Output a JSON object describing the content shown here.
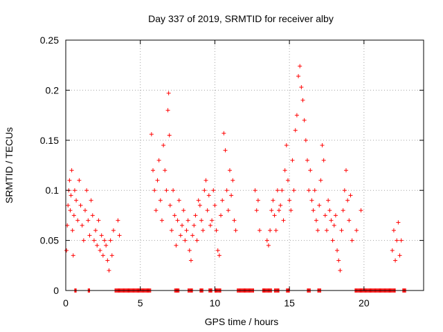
{
  "chart_data": {
    "type": "scatter",
    "title": "Day 337 of 2019, SRMTID for receiver alby",
    "xlabel": "GPS time / hours",
    "ylabel": "SRMTID / TECUs",
    "xlim": [
      0,
      24
    ],
    "ylim": [
      0,
      0.25
    ],
    "xticks": [
      0,
      5,
      10,
      15,
      20
    ],
    "yticks": [
      0,
      0.05,
      0.1,
      0.15,
      0.2,
      0.25
    ],
    "xtick_labels": [
      "0",
      "5",
      "10",
      "15",
      "20"
    ],
    "ytick_labels": [
      "0",
      "0.05",
      "0.1",
      "0.15",
      "0.2",
      "0.25"
    ],
    "grid": true,
    "marker": "+",
    "color": "#ff0000",
    "series": [
      {
        "name": "SRMTID",
        "x": [
          0.05,
          0.1,
          0.15,
          0.2,
          0.25,
          0.3,
          0.35,
          0.4,
          0.45,
          0.5,
          0.55,
          0.6,
          0.7,
          0.8,
          0.9,
          1.0,
          1.1,
          1.2,
          1.3,
          1.4,
          1.5,
          1.6,
          1.7,
          1.8,
          1.9,
          2.0,
          2.1,
          2.2,
          2.3,
          2.4,
          2.5,
          2.6,
          2.7,
          2.8,
          2.9,
          3.0,
          3.1,
          3.2,
          3.5,
          3.6,
          5.75,
          5.85,
          5.95,
          6.05,
          6.15,
          6.25,
          6.35,
          6.45,
          6.55,
          6.65,
          6.75,
          6.85,
          6.9,
          6.95,
          7.0,
          7.1,
          7.2,
          7.3,
          7.4,
          7.5,
          7.6,
          7.7,
          7.8,
          7.9,
          8.0,
          8.1,
          8.2,
          8.3,
          8.4,
          8.5,
          8.6,
          8.7,
          8.8,
          8.9,
          9.0,
          9.1,
          9.2,
          9.3,
          9.4,
          9.5,
          9.6,
          9.7,
          9.8,
          9.9,
          10.0,
          10.1,
          10.2,
          10.3,
          10.4,
          10.5,
          10.6,
          10.7,
          10.8,
          10.9,
          11.0,
          11.1,
          11.2,
          11.3,
          11.4,
          12.7,
          12.8,
          12.9,
          13.0,
          13.5,
          13.6,
          13.7,
          13.8,
          13.9,
          14.0,
          14.1,
          14.2,
          14.3,
          14.4,
          14.5,
          14.6,
          14.7,
          14.8,
          14.9,
          15.0,
          15.1,
          15.2,
          15.3,
          15.4,
          15.5,
          15.6,
          15.7,
          15.8,
          15.9,
          16.0,
          16.1,
          16.2,
          16.3,
          16.4,
          16.5,
          16.6,
          16.7,
          16.8,
          16.9,
          17.0,
          17.1,
          17.2,
          17.3,
          17.4,
          17.5,
          17.6,
          17.7,
          17.8,
          17.9,
          18.0,
          18.1,
          18.2,
          18.3,
          18.4,
          18.5,
          18.6,
          18.7,
          18.8,
          18.9,
          19.0,
          19.1,
          19.2,
          19.5,
          19.8,
          21.9,
          22.0,
          22.1,
          22.2,
          22.3,
          22.4,
          22.5
        ],
        "y": [
          0.04,
          0.065,
          0.085,
          0.1,
          0.11,
          0.08,
          0.095,
          0.12,
          0.06,
          0.035,
          0.075,
          0.1,
          0.09,
          0.07,
          0.11,
          0.085,
          0.065,
          0.05,
          0.08,
          0.1,
          0.07,
          0.055,
          0.09,
          0.075,
          0.05,
          0.06,
          0.045,
          0.07,
          0.04,
          0.055,
          0.035,
          0.05,
          0.045,
          0.03,
          0.02,
          0.05,
          0.035,
          0.06,
          0.07,
          0.055,
          0.156,
          0.12,
          0.1,
          0.08,
          0.11,
          0.13,
          0.09,
          0.07,
          0.145,
          0.12,
          0.1,
          0.18,
          0.197,
          0.155,
          0.085,
          0.06,
          0.1,
          0.075,
          0.045,
          0.07,
          0.09,
          0.055,
          0.065,
          0.08,
          0.05,
          0.06,
          0.07,
          0.04,
          0.03,
          0.055,
          0.065,
          0.075,
          0.05,
          0.09,
          0.085,
          0.07,
          0.06,
          0.1,
          0.11,
          0.08,
          0.095,
          0.065,
          0.07,
          0.1,
          0.085,
          0.06,
          0.04,
          0.035,
          0.075,
          0.09,
          0.157,
          0.14,
          0.1,
          0.08,
          0.12,
          0.095,
          0.11,
          0.07,
          0.06,
          0.1,
          0.08,
          0.09,
          0.06,
          0.05,
          0.045,
          0.06,
          0.08,
          0.09,
          0.075,
          0.06,
          0.1,
          0.08,
          0.085,
          0.1,
          0.07,
          0.12,
          0.145,
          0.11,
          0.09,
          0.08,
          0.13,
          0.1,
          0.16,
          0.175,
          0.214,
          0.224,
          0.203,
          0.19,
          0.17,
          0.15,
          0.13,
          0.1,
          0.12,
          0.09,
          0.08,
          0.1,
          0.07,
          0.06,
          0.085,
          0.11,
          0.145,
          0.13,
          0.075,
          0.06,
          0.09,
          0.08,
          0.07,
          0.05,
          0.065,
          0.075,
          0.04,
          0.03,
          0.02,
          0.06,
          0.08,
          0.1,
          0.12,
          0.09,
          0.07,
          0.095,
          0.05,
          0.06,
          0.08,
          0.04,
          0.06,
          0.03,
          0.05,
          0.068,
          0.035,
          0.05
        ],
        "zero_ranges": [
          [
            0.6,
            0.7
          ],
          [
            1.5,
            1.6
          ],
          [
            3.3,
            5.7
          ],
          [
            7.3,
            7.6
          ],
          [
            8.2,
            8.5
          ],
          [
            9.0,
            9.2
          ],
          [
            9.6,
            9.8
          ],
          [
            10.0,
            10.4
          ],
          [
            11.5,
            12.6
          ],
          [
            13.2,
            13.8
          ],
          [
            14.0,
            14.3
          ],
          [
            14.8,
            15.0
          ],
          [
            16.2,
            16.4
          ],
          [
            16.9,
            17.1
          ],
          [
            19.4,
            22.1
          ],
          [
            22.6,
            22.8
          ]
        ]
      }
    ]
  }
}
